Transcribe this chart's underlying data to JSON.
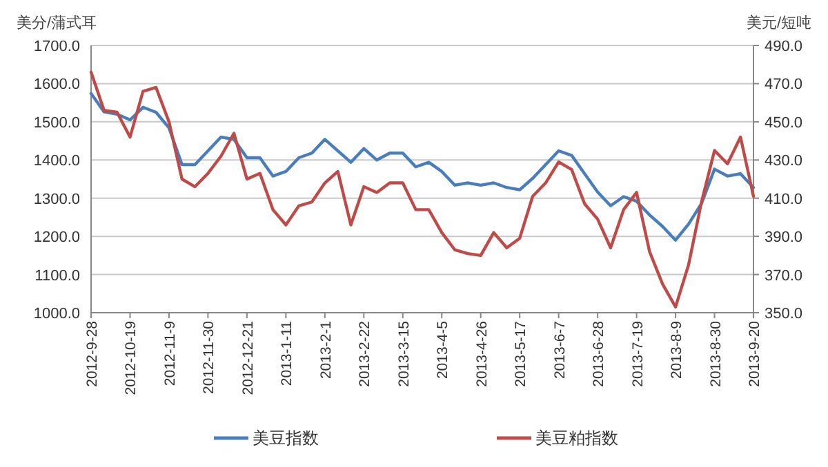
{
  "chart_data": {
    "type": "line",
    "ylabel": "美分/蒲式耳",
    "y2label": "美元/短吨",
    "x": [
      "2012-09-28",
      "2012-10-05",
      "2012-10-12",
      "2012-10-19",
      "2012-10-26",
      "2012-11-02",
      "2012-11-09",
      "2012-11-16",
      "2012-11-23",
      "2012-11-30",
      "2012-12-07",
      "2012-12-14",
      "2012-12-21",
      "2012-12-28",
      "2013-01-04",
      "2013-01-11",
      "2013-01-18",
      "2013-01-25",
      "2013-02-01",
      "2013-02-08",
      "2013-02-15",
      "2013-02-22",
      "2013-03-01",
      "2013-03-08",
      "2013-03-15",
      "2013-03-22",
      "2013-03-29",
      "2013-04-05",
      "2013-04-12",
      "2013-04-19",
      "2013-04-26",
      "2013-05-03",
      "2013-05-10",
      "2013-05-17",
      "2013-05-24",
      "2013-05-31",
      "2013-06-07",
      "2013-06-14",
      "2013-06-21",
      "2013-06-28",
      "2013-07-05",
      "2013-07-12",
      "2013-07-19",
      "2013-07-26",
      "2013-08-02",
      "2013-08-09",
      "2013-08-16",
      "2013-08-23",
      "2013-08-30",
      "2013-09-06",
      "2013-09-13",
      "2013-09-20"
    ],
    "series": [
      {
        "name": "美豆指数",
        "color": "#4a7ebb",
        "values": [
          1574,
          1526,
          1520,
          1505,
          1538,
          1525,
          1484,
          1388,
          1388,
          1424,
          1460,
          1454,
          1406,
          1406,
          1358,
          1370,
          1406,
          1418,
          1454,
          1424,
          1394,
          1430,
          1400,
          1418,
          1418,
          1382,
          1394,
          1370,
          1334,
          1340,
          1334,
          1340,
          1328,
          1322,
          1352,
          1388,
          1424,
          1412,
          1364,
          1316,
          1280,
          1304,
          1292,
          1256,
          1226,
          1190,
          1232,
          1286,
          1376,
          1358,
          1364,
          1328
        ]
      },
      {
        "name": "美豆粕指数",
        "color": "#be4b48",
        "axis": "y2",
        "values": [
          476,
          456,
          455,
          442,
          466,
          468,
          450,
          420,
          416,
          423,
          432,
          444,
          420,
          423,
          404,
          396,
          406,
          408,
          418,
          424,
          396,
          416,
          413,
          418,
          418,
          404,
          404,
          392,
          383,
          381,
          380,
          392,
          384,
          389,
          411,
          418,
          429,
          425,
          407,
          399,
          384,
          404,
          413,
          382,
          365,
          353,
          375,
          408,
          435,
          428,
          442,
          411
        ]
      }
    ],
    "ylim": [
      1000,
      1700
    ],
    "yticks": [
      {
        "value": 1000,
        "label": "1000.0"
      },
      {
        "value": 1100,
        "label": "1100.0"
      },
      {
        "value": 1200,
        "label": "1200.0"
      },
      {
        "value": 1300,
        "label": "1300.0"
      },
      {
        "value": 1400,
        "label": "1400.0"
      },
      {
        "value": 1500,
        "label": "1500.0"
      },
      {
        "value": 1600,
        "label": "1600.0"
      },
      {
        "value": 1700,
        "label": "1700.0"
      }
    ],
    "y2lim": [
      350,
      490
    ],
    "y2ticks": [
      {
        "value": 350,
        "label": "350.0"
      },
      {
        "value": 370,
        "label": "370.0"
      },
      {
        "value": 390,
        "label": "390.0"
      },
      {
        "value": 410,
        "label": "410.0"
      },
      {
        "value": 430,
        "label": "430.0"
      },
      {
        "value": 450,
        "label": "450.0"
      },
      {
        "value": 470,
        "label": "470.0"
      },
      {
        "value": 490,
        "label": "490.0"
      }
    ],
    "xlim": [
      "2012-09-28",
      "2013-09-20"
    ],
    "xticks": [
      {
        "value": "2012-09-28",
        "label": "2012-9-28"
      },
      {
        "value": "2012-10-19",
        "label": "2012-10-19"
      },
      {
        "value": "2012-11-09",
        "label": "2012-11-9"
      },
      {
        "value": "2012-11-30",
        "label": "2012-11-30"
      },
      {
        "value": "2012-12-21",
        "label": "2012-12-21"
      },
      {
        "value": "2013-01-11",
        "label": "2013-1-11"
      },
      {
        "value": "2013-02-01",
        "label": "2013-2-1"
      },
      {
        "value": "2013-02-22",
        "label": "2013-2-22"
      },
      {
        "value": "2013-03-15",
        "label": "2013-3-15"
      },
      {
        "value": "2013-04-05",
        "label": "2013-4-5"
      },
      {
        "value": "2013-04-26",
        "label": "2013-4-26"
      },
      {
        "value": "2013-05-17",
        "label": "2013-5-17"
      },
      {
        "value": "2013-06-07",
        "label": "2013-6-7"
      },
      {
        "value": "2013-06-28",
        "label": "2013-6-28"
      },
      {
        "value": "2013-07-19",
        "label": "2013-7-19"
      },
      {
        "value": "2013-08-09",
        "label": "2013-8-9"
      },
      {
        "value": "2013-08-30",
        "label": "2013-8-30"
      },
      {
        "value": "2013-09-20",
        "label": "2013-9-20"
      }
    ],
    "grid": "y",
    "legend": "bottom"
  }
}
